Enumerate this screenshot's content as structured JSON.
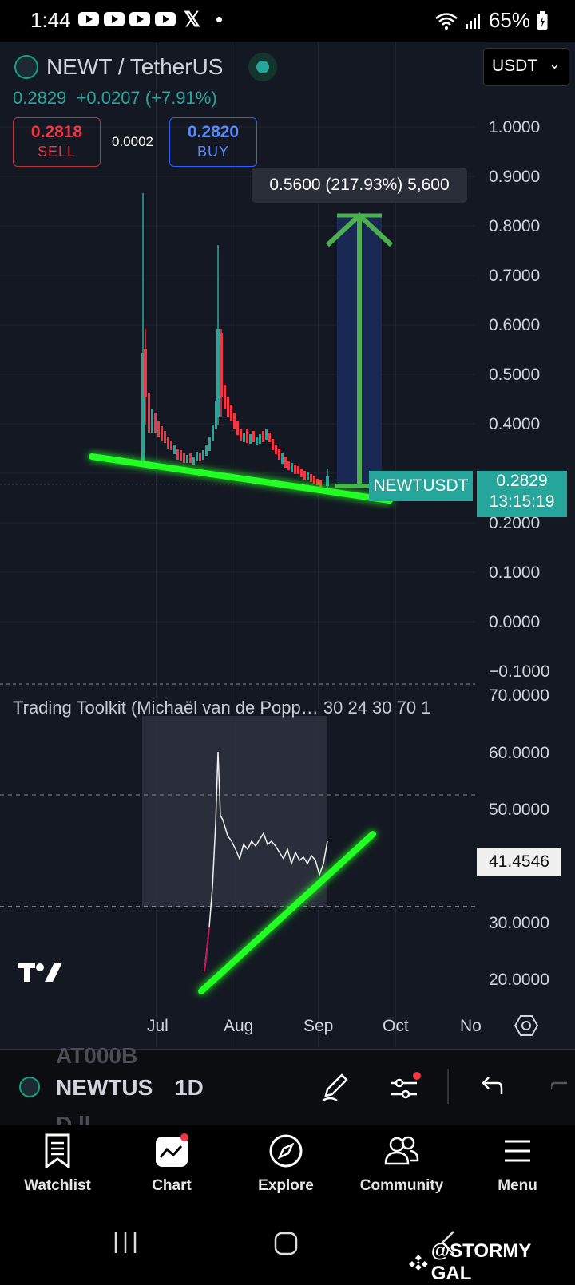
{
  "status_bar": {
    "time": "1:44",
    "battery": "65%"
  },
  "symbol": {
    "pair_title": "NEWT / TetherUS",
    "last_price": "0.2829",
    "change": "+0.0207 (+7.91%)",
    "currency_selector": "USDT"
  },
  "order_panel": {
    "sell_price": "0.2818",
    "sell_label": "SELL",
    "spread": "0.0002",
    "buy_price": "0.2820",
    "buy_label": "BUY"
  },
  "measure_tooltip": "0.5600 (217.93%) 5,600",
  "price_axis": [
    "1.0000",
    "0.9000",
    "0.8000",
    "0.7000",
    "0.6000",
    "0.5000",
    "0.4000",
    "0.2000",
    "0.1000",
    "0.0000",
    "−0.1000"
  ],
  "price_tag": {
    "symbol": "NEWTUSDT",
    "price": "0.2829",
    "countdown": "13:15:19"
  },
  "indicator": {
    "label": "Trading Toolkit (Michaël van de Popp… 30 24 30 70 1",
    "axis": [
      "70.0000",
      "60.0000",
      "50.0000",
      "30.0000",
      "20.0000"
    ],
    "current_value": "41.4546"
  },
  "time_axis": [
    "Jul",
    "Aug",
    "Sep",
    "Oct",
    "No"
  ],
  "toolbar": {
    "symbol": "NEWTUS",
    "interval": "1D",
    "ghost_top": "AT000B",
    "ghost_bottom": "D.ll"
  },
  "bottom_nav": [
    {
      "label": "Watchlist",
      "icon": "watchlist-icon"
    },
    {
      "label": "Chart",
      "icon": "chart-icon"
    },
    {
      "label": "Explore",
      "icon": "compass-icon"
    },
    {
      "label": "Community",
      "icon": "community-icon"
    },
    {
      "label": "Menu",
      "icon": "menu-icon"
    }
  ],
  "watermark": "@STORMY GAL",
  "colors": {
    "up": "#26a69a",
    "down": "#f23645",
    "trendline": "#22ff22",
    "arrow": "#4caf50",
    "background": "#141823"
  }
}
